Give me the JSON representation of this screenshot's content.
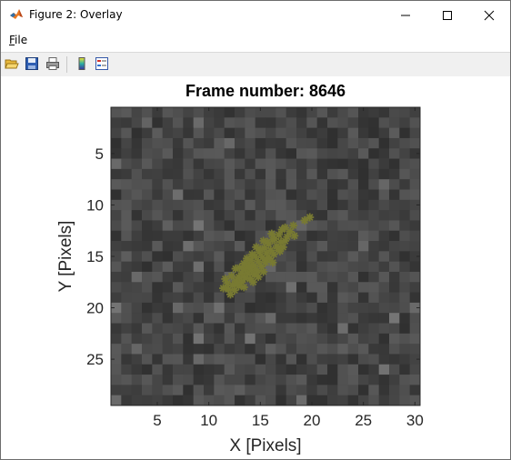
{
  "window": {
    "title": "Figure 2: Overlay",
    "menu": {
      "file_label": "File",
      "file_mnemonic": "F",
      "file_rest": "ile"
    },
    "controls": [
      "minimize-icon",
      "maximize-icon",
      "close-icon"
    ]
  },
  "toolbar": {
    "buttons": [
      "open-folder-icon",
      "save-icon",
      "print-icon",
      "colorbar-icon",
      "legend-icon"
    ]
  },
  "chart_data": {
    "type": "heatmap",
    "title": "Frame number: 8646",
    "xlabel": "X [Pixels]",
    "ylabel": "Y [Pixels]",
    "x_ticks": [
      5,
      10,
      15,
      20,
      25,
      30
    ],
    "y_ticks": [
      5,
      10,
      15,
      20,
      25
    ],
    "xlim": [
      0.5,
      30.5
    ],
    "ylim": [
      0.5,
      29.5
    ],
    "y_direction": "reverse",
    "image_size": {
      "columns": 30,
      "rows": 29
    },
    "image_colormap": "gray",
    "overlay": {
      "type": "scatter",
      "marker": "star",
      "color": "#787a32",
      "points": [
        [
          19.8,
          11.2
        ],
        [
          19.3,
          11.5
        ],
        [
          18.2,
          12.0
        ],
        [
          17.4,
          12.2
        ],
        [
          17.9,
          12.6
        ],
        [
          16.8,
          12.9
        ],
        [
          17.6,
          13.1
        ],
        [
          18.3,
          13.0
        ],
        [
          16.2,
          13.4
        ],
        [
          17.0,
          13.6
        ],
        [
          15.8,
          13.8
        ],
        [
          16.6,
          14.0
        ],
        [
          17.2,
          14.1
        ],
        [
          15.4,
          14.2
        ],
        [
          16.0,
          14.4
        ],
        [
          14.9,
          14.6
        ],
        [
          15.6,
          14.7
        ],
        [
          16.3,
          14.8
        ],
        [
          14.5,
          15.0
        ],
        [
          15.2,
          15.1
        ],
        [
          15.9,
          15.2
        ],
        [
          14.1,
          15.4
        ],
        [
          14.8,
          15.5
        ],
        [
          15.5,
          15.6
        ],
        [
          13.8,
          15.8
        ],
        [
          14.4,
          15.9
        ],
        [
          15.1,
          16.0
        ],
        [
          13.5,
          16.2
        ],
        [
          14.1,
          16.3
        ],
        [
          14.7,
          16.4
        ],
        [
          13.2,
          16.6
        ],
        [
          13.8,
          16.7
        ],
        [
          14.4,
          16.8
        ],
        [
          12.9,
          17.0
        ],
        [
          13.5,
          17.1
        ],
        [
          14.0,
          17.2
        ],
        [
          12.6,
          17.4
        ],
        [
          13.2,
          17.5
        ],
        [
          12.3,
          17.8
        ],
        [
          12.9,
          17.9
        ],
        [
          11.9,
          18.2
        ],
        [
          12.5,
          18.3
        ],
        [
          11.4,
          18.1
        ],
        [
          11.8,
          17.6
        ],
        [
          12.2,
          16.9
        ],
        [
          13.0,
          16.1
        ],
        [
          13.7,
          15.2
        ],
        [
          14.6,
          14.1
        ],
        [
          15.3,
          13.5
        ],
        [
          16.1,
          12.8
        ],
        [
          12.6,
          16.2
        ],
        [
          13.4,
          15.7
        ],
        [
          14.2,
          14.8
        ],
        [
          15.0,
          14.3
        ],
        [
          15.7,
          13.6
        ],
        [
          16.4,
          13.3
        ],
        [
          17.4,
          13.5
        ],
        [
          16.9,
          14.5
        ],
        [
          16.2,
          15.6
        ],
        [
          15.3,
          16.5
        ],
        [
          14.3,
          17.5
        ],
        [
          13.4,
          18.0
        ],
        [
          12.1,
          18.7
        ],
        [
          14.8,
          17.0
        ],
        [
          15.6,
          15.3
        ],
        [
          16.7,
          14.2
        ],
        [
          13.9,
          16.0
        ],
        [
          12.8,
          17.7
        ],
        [
          11.6,
          17.2
        ],
        [
          17.1,
          12.4
        ]
      ]
    }
  }
}
